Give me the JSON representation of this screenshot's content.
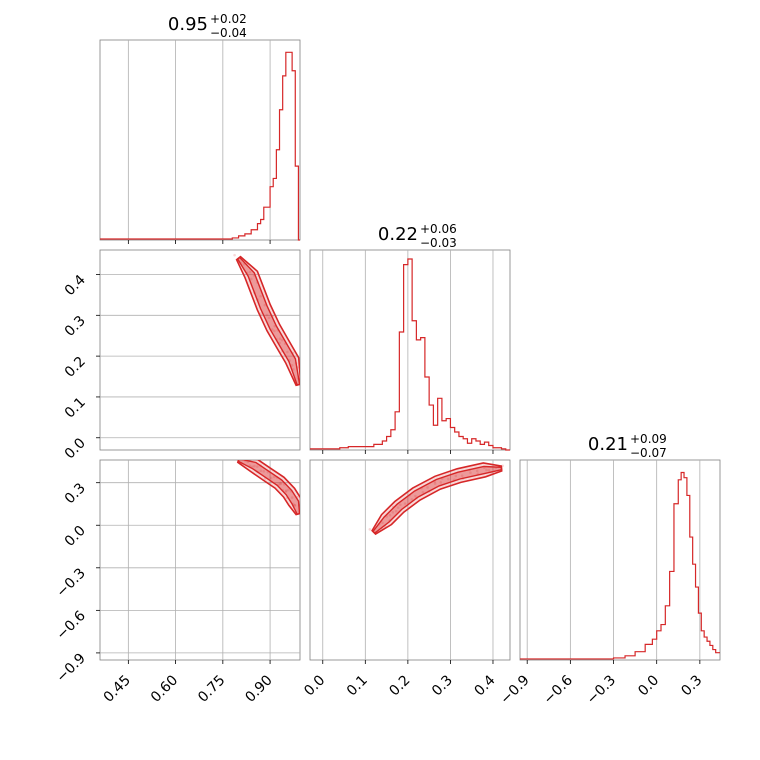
{
  "chart_data": [
    {
      "type": "histogram",
      "panel": "p0",
      "title": {
        "value": "0.95",
        "plus": "+0.02",
        "minus": "−0.04"
      },
      "xlim": [
        0.36,
        0.995
      ],
      "xticks": [
        "0.45",
        "0.60",
        "0.75",
        "0.90"
      ],
      "xtick_values": [
        0.45,
        0.6,
        0.75,
        0.9
      ],
      "bins": [
        0.36,
        0.78,
        0.8,
        0.82,
        0.84,
        0.86,
        0.87,
        0.88,
        0.9,
        0.91,
        0.92,
        0.93,
        0.94,
        0.95,
        0.96,
        0.97,
        0.98,
        0.99,
        0.995
      ],
      "counts": [
        1,
        2,
        4,
        6,
        10,
        16,
        20,
        32,
        52,
        60,
        88,
        127,
        160,
        183,
        183,
        165,
        72,
        0
      ],
      "ymax": 195
    },
    {
      "type": "histogram",
      "panel": "p1",
      "title": {
        "value": "0.22",
        "plus": "+0.06",
        "minus": "−0.03"
      },
      "xlim": [
        -0.03,
        0.44
      ],
      "xticks": [
        "0.0",
        "0.1",
        "0.2",
        "0.3",
        "0.4"
      ],
      "xtick_values": [
        0.0,
        0.1,
        0.2,
        0.3,
        0.4
      ],
      "bins": [
        -0.03,
        0.04,
        0.06,
        0.12,
        0.14,
        0.15,
        0.16,
        0.17,
        0.18,
        0.19,
        0.2,
        0.21,
        0.22,
        0.23,
        0.24,
        0.25,
        0.26,
        0.27,
        0.28,
        0.29,
        0.3,
        0.31,
        0.32,
        0.33,
        0.34,
        0.35,
        0.36,
        0.37,
        0.38,
        0.39,
        0.4,
        0.41,
        0.42,
        0.43,
        0.44
      ],
      "counts": [
        1,
        2,
        3,
        5,
        8,
        12,
        18,
        34,
        105,
        165,
        170,
        115,
        98,
        100,
        65,
        40,
        22,
        46,
        26,
        28,
        20,
        16,
        12,
        10,
        6,
        10,
        8,
        5,
        7,
        4,
        2,
        2,
        1,
        0
      ],
      "ymax": 178
    },
    {
      "type": "histogram",
      "panel": "p2",
      "title": {
        "value": "0.21",
        "plus": "+0.09",
        "minus": "−0.07"
      },
      "xlim": [
        -0.95,
        0.44
      ],
      "xticks": [
        "−0.9",
        "−0.6",
        "−0.3",
        "0.0",
        "0.3"
      ],
      "xtick_values": [
        -0.9,
        -0.6,
        -0.3,
        0.0,
        0.3
      ],
      "bins": [
        -0.95,
        -0.3,
        -0.22,
        -0.15,
        -0.08,
        -0.03,
        0.0,
        0.03,
        0.06,
        0.09,
        0.12,
        0.15,
        0.17,
        0.19,
        0.21,
        0.23,
        0.25,
        0.27,
        0.29,
        0.31,
        0.33,
        0.35,
        0.37,
        0.39,
        0.41,
        0.44
      ],
      "counts": [
        1,
        2,
        4,
        8,
        15,
        20,
        28,
        34,
        52,
        85,
        150,
        173,
        180,
        175,
        158,
        118,
        92,
        70,
        45,
        28,
        22,
        18,
        14,
        10,
        7
      ],
      "ymax": 192
    },
    {
      "type": "scatter-contour",
      "panel": "p10",
      "xlim": [
        0.36,
        0.995
      ],
      "ylim": [
        -0.03,
        0.46
      ],
      "xticks": [],
      "yticks": [
        "0.0",
        "0.1",
        "0.2",
        "0.3",
        "0.4"
      ],
      "ytick_values": [
        0.0,
        0.1,
        0.2,
        0.3,
        0.4
      ],
      "ridge": [
        [
          0.8,
          0.44
        ],
        [
          0.84,
          0.4
        ],
        [
          0.88,
          0.32
        ],
        [
          0.91,
          0.27
        ],
        [
          0.94,
          0.23
        ],
        [
          0.97,
          0.19
        ],
        [
          0.99,
          0.13
        ]
      ]
    },
    {
      "type": "scatter-contour",
      "panel": "p20",
      "xlim": [
        0.36,
        0.995
      ],
      "ylim": [
        -0.95,
        0.46
      ],
      "xticks": [
        "0.45",
        "0.60",
        "0.75",
        "0.90"
      ],
      "xtick_values": [
        0.45,
        0.6,
        0.75,
        0.9
      ],
      "yticks": [
        "−0.9",
        "−0.6",
        "−0.3",
        "0.0",
        "0.3"
      ],
      "ytick_values": [
        -0.9,
        -0.6,
        -0.3,
        0.0,
        0.3
      ],
      "ridge": [
        [
          0.8,
          0.46
        ],
        [
          0.85,
          0.42
        ],
        [
          0.89,
          0.36
        ],
        [
          0.93,
          0.3
        ],
        [
          0.96,
          0.23
        ],
        [
          0.98,
          0.16
        ],
        [
          0.99,
          0.08
        ]
      ]
    },
    {
      "type": "scatter-contour",
      "panel": "p21",
      "xlim": [
        -0.03,
        0.44
      ],
      "ylim": [
        -0.95,
        0.46
      ],
      "xticks": [
        "0.0",
        "0.1",
        "0.2",
        "0.3",
        "0.4"
      ],
      "xtick_values": [
        0.0,
        0.1,
        0.2,
        0.3,
        0.4
      ],
      "yticks": [],
      "ridge": [
        [
          0.12,
          -0.05
        ],
        [
          0.15,
          0.04
        ],
        [
          0.18,
          0.13
        ],
        [
          0.22,
          0.22
        ],
        [
          0.27,
          0.3
        ],
        [
          0.32,
          0.35
        ],
        [
          0.38,
          0.39
        ],
        [
          0.42,
          0.4
        ]
      ]
    }
  ]
}
